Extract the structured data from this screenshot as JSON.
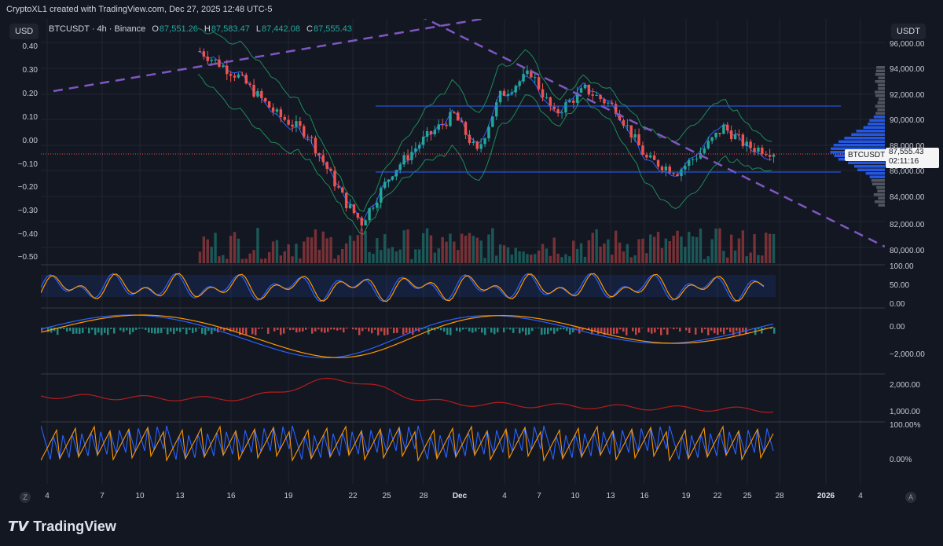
{
  "header": {
    "credit": "CryptoXL1 created with TradingView.com, Dec 27, 2025 12:48 UTC-5"
  },
  "left_scale_button": "USD",
  "right_scale_button": "USDT",
  "legend": {
    "symbol": "BTCUSDT · 4h · Binance",
    "o_label": "O",
    "o_value": "87,551.26",
    "h_label": "H",
    "h_value": "87,583.47",
    "l_label": "L",
    "l_value": "87,442.08",
    "c_label": "C",
    "c_value": "87,555.43"
  },
  "price_tag": {
    "symbol": "BTCUSDT",
    "price": "87,555.43",
    "countdown": "02:11:16"
  },
  "left_axis": [
    "0.40",
    "0.30",
    "0.20",
    "0.10",
    "0.00",
    "−0.10",
    "−0.20",
    "−0.30",
    "−0.40",
    "−0.50"
  ],
  "right_axis_price": [
    "96,000.00",
    "94,000.00",
    "92,000.00",
    "90,000.00",
    "88,000.00",
    "86,000.00",
    "84,000.00",
    "82,000.00",
    "80,000.00"
  ],
  "right_axis_stoch": [
    "100.00",
    "50.00",
    "0.00"
  ],
  "right_axis_macd": [
    "0.00",
    "−2,000.00"
  ],
  "right_axis_atr": [
    "2,000.00",
    "1,000.00"
  ],
  "right_axis_pct": [
    "100.00%",
    "0.00%"
  ],
  "time_axis": [
    "4",
    "7",
    "10",
    "13",
    "16",
    "19",
    "22",
    "25",
    "28",
    "Dec",
    "4",
    "7",
    "10",
    "13",
    "16",
    "19",
    "22",
    "25",
    "28",
    "2026",
    "4"
  ],
  "bottom_left_button": "Z",
  "bottom_right_button": "A",
  "brand": "TradingView",
  "colors": {
    "up": "#26a69a",
    "up_bright": "#00e676",
    "down": "#ef5350",
    "down_bright": "#ff1744",
    "bb": "#1e8a5a",
    "ma": "#2962ff",
    "trend": "#7e57c2",
    "bg": "#131722"
  }
}
